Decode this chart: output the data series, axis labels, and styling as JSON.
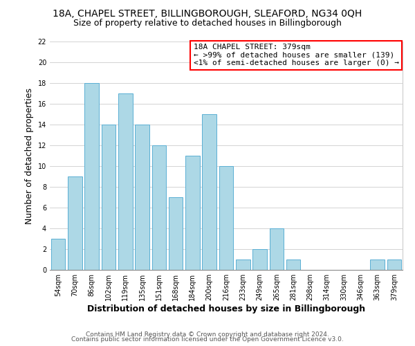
{
  "title": "18A, CHAPEL STREET, BILLINGBOROUGH, SLEAFORD, NG34 0QH",
  "subtitle": "Size of property relative to detached houses in Billingborough",
  "xlabel": "Distribution of detached houses by size in Billingborough",
  "ylabel": "Number of detached properties",
  "bar_labels": [
    "54sqm",
    "70sqm",
    "86sqm",
    "102sqm",
    "119sqm",
    "135sqm",
    "151sqm",
    "168sqm",
    "184sqm",
    "200sqm",
    "216sqm",
    "233sqm",
    "249sqm",
    "265sqm",
    "281sqm",
    "298sqm",
    "314sqm",
    "330sqm",
    "346sqm",
    "363sqm",
    "379sqm"
  ],
  "bar_values": [
    3,
    9,
    18,
    14,
    17,
    14,
    12,
    7,
    11,
    15,
    10,
    1,
    2,
    4,
    1,
    0,
    0,
    0,
    0,
    1,
    1
  ],
  "bar_color": "#add8e6",
  "bar_edge_color": "#5aafd4",
  "ylim": [
    0,
    22
  ],
  "yticks": [
    0,
    2,
    4,
    6,
    8,
    10,
    12,
    14,
    16,
    18,
    20,
    22
  ],
  "annotation_box_text": "18A CHAPEL STREET: 379sqm\n← >99% of detached houses are smaller (139)\n<1% of semi-detached houses are larger (0) →",
  "footer_line1": "Contains HM Land Registry data © Crown copyright and database right 2024.",
  "footer_line2": "Contains public sector information licensed under the Open Government Licence v3.0.",
  "grid_color": "#cccccc",
  "background_color": "#ffffff",
  "title_fontsize": 10,
  "subtitle_fontsize": 9,
  "axis_label_fontsize": 9,
  "tick_fontsize": 7,
  "annotation_fontsize": 8,
  "footer_fontsize": 6.5
}
